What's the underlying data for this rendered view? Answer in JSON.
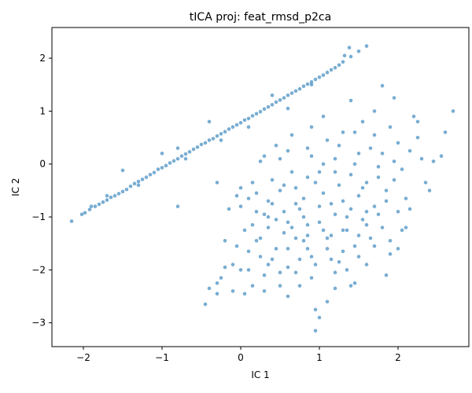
{
  "chart_data": {
    "type": "scatter",
    "title": "tICA proj: feat_rmsd_p2ca",
    "xlabel": "IC 1",
    "ylabel": "IC 2",
    "xlim": [
      -2.4,
      2.9
    ],
    "ylim": [
      -3.45,
      2.58
    ],
    "xticks": [
      -2,
      -1,
      0,
      1,
      2
    ],
    "yticks": [
      -3,
      -2,
      -1,
      0,
      1,
      2
    ],
    "grid": false,
    "color": "#1f77b4",
    "series": [
      {
        "points": [
          [
            -2.15,
            -1.08
          ],
          [
            -2.02,
            -0.95
          ],
          [
            -1.98,
            -0.92
          ],
          [
            -1.92,
            -0.86
          ],
          [
            -1.85,
            -0.8
          ],
          [
            -1.8,
            -0.76
          ],
          [
            -1.75,
            -0.72
          ],
          [
            -1.7,
            -0.68
          ],
          [
            -1.65,
            -0.63
          ],
          [
            -1.6,
            -0.6
          ],
          [
            -1.55,
            -0.56
          ],
          [
            -1.5,
            -0.52
          ],
          [
            -1.45,
            -0.48
          ],
          [
            -1.4,
            -0.42
          ],
          [
            -1.35,
            -0.37
          ],
          [
            -1.3,
            -0.33
          ],
          [
            -1.25,
            -0.29
          ],
          [
            -1.2,
            -0.25
          ],
          [
            -1.15,
            -0.2
          ],
          [
            -1.1,
            -0.16
          ],
          [
            -1.05,
            -0.1
          ],
          [
            -1.0,
            -0.07
          ],
          [
            -0.95,
            -0.03
          ],
          [
            -0.9,
            0.02
          ],
          [
            -0.85,
            0.06
          ],
          [
            -0.8,
            0.1
          ],
          [
            -0.75,
            0.15
          ],
          [
            -0.7,
            0.19
          ],
          [
            -0.65,
            0.23
          ],
          [
            -0.6,
            0.28
          ],
          [
            -0.55,
            0.32
          ],
          [
            -0.5,
            0.37
          ],
          [
            -0.45,
            0.4
          ],
          [
            -0.4,
            0.45
          ],
          [
            -0.35,
            0.48
          ],
          [
            -0.3,
            0.53
          ],
          [
            -0.25,
            0.57
          ],
          [
            -0.2,
            0.61
          ],
          [
            -0.15,
            0.66
          ],
          [
            -0.1,
            0.7
          ],
          [
            -0.05,
            0.74
          ],
          [
            0.0,
            0.78
          ],
          [
            0.05,
            0.83
          ],
          [
            0.1,
            0.86
          ],
          [
            0.15,
            0.91
          ],
          [
            0.2,
            0.95
          ],
          [
            0.25,
            0.99
          ],
          [
            0.3,
            1.04
          ],
          [
            0.35,
            1.08
          ],
          [
            0.4,
            1.12
          ],
          [
            0.45,
            1.17
          ],
          [
            0.5,
            1.21
          ],
          [
            0.55,
            1.25
          ],
          [
            0.6,
            1.3
          ],
          [
            0.65,
            1.34
          ],
          [
            0.7,
            1.38
          ],
          [
            0.75,
            1.42
          ],
          [
            0.8,
            1.47
          ],
          [
            0.85,
            1.51
          ],
          [
            0.9,
            1.55
          ],
          [
            0.95,
            1.6
          ],
          [
            1.0,
            1.64
          ],
          [
            1.05,
            1.68
          ],
          [
            1.1,
            1.73
          ],
          [
            1.15,
            1.78
          ],
          [
            1.2,
            1.82
          ],
          [
            1.25,
            1.87
          ],
          [
            1.3,
            1.93
          ],
          [
            1.4,
            2.03
          ],
          [
            1.5,
            2.13
          ],
          [
            1.6,
            2.23
          ],
          [
            1.38,
            2.2
          ],
          [
            1.32,
            2.05
          ],
          [
            -1.5,
            -0.12
          ],
          [
            -1.0,
            0.2
          ],
          [
            -1.9,
            -0.8
          ],
          [
            -1.3,
            -0.4
          ],
          [
            -0.4,
            0.8
          ],
          [
            -0.7,
            0.1
          ],
          [
            0.1,
            0.7
          ],
          [
            0.6,
            1.05
          ],
          [
            -0.25,
            0.45
          ],
          [
            0.4,
            1.3
          ],
          [
            -1.7,
            -0.6
          ],
          [
            0.9,
            1.5
          ],
          [
            -0.8,
            0.3
          ],
          [
            -0.8,
            -0.8
          ],
          [
            -0.45,
            -2.65
          ],
          [
            -0.4,
            -2.35
          ],
          [
            -0.3,
            -2.25
          ],
          [
            -0.2,
            -1.95
          ],
          [
            -0.1,
            -1.9
          ],
          [
            -0.05,
            -1.55
          ],
          [
            0.0,
            -0.8
          ],
          [
            0.05,
            -2.45
          ],
          [
            0.1,
            -1.65
          ],
          [
            0.15,
            -1.15
          ],
          [
            0.2,
            -0.55
          ],
          [
            0.25,
            -1.4
          ],
          [
            0.3,
            -2.1
          ],
          [
            0.35,
            -0.7
          ],
          [
            0.4,
            -1.8
          ],
          [
            0.45,
            -1.05
          ],
          [
            0.5,
            -2.3
          ],
          [
            0.55,
            -0.4
          ],
          [
            0.6,
            -1.6
          ],
          [
            0.65,
            -1.2
          ],
          [
            0.7,
            -2.05
          ],
          [
            0.75,
            -0.85
          ],
          [
            0.8,
            -1.45
          ],
          [
            0.85,
            -0.25
          ],
          [
            0.9,
            -1.75
          ],
          [
            0.95,
            -2.75
          ],
          [
            1.0,
            -1.1
          ],
          [
            1.05,
            -0.55
          ],
          [
            1.1,
            -2.6
          ],
          [
            1.15,
            -1.35
          ],
          [
            1.2,
            -0.95
          ],
          [
            1.25,
            -1.85
          ],
          [
            1.3,
            -0.7
          ],
          [
            1.35,
            -1.25
          ],
          [
            1.4,
            -0.2
          ],
          [
            1.45,
            -1.55
          ],
          [
            1.5,
            -0.6
          ],
          [
            1.55,
            -1.05
          ],
          [
            1.6,
            -0.35
          ],
          [
            1.65,
            -1.4
          ],
          [
            1.7,
            -0.8
          ],
          [
            1.75,
            -0.05
          ],
          [
            1.8,
            -1.2
          ],
          [
            1.85,
            -0.5
          ],
          [
            1.9,
            -1.7
          ],
          [
            1.95,
            -0.3
          ],
          [
            2.0,
            -0.9
          ],
          [
            2.05,
            -0.1
          ],
          [
            2.1,
            -1.2
          ],
          [
            2.15,
            0.25
          ],
          [
            2.25,
            0.8
          ],
          [
            2.35,
            -0.35
          ],
          [
            2.45,
            0.05
          ],
          [
            2.6,
            0.6
          ],
          [
            2.7,
            1.0
          ],
          [
            1.8,
            1.48
          ],
          [
            1.95,
            1.25
          ],
          [
            1.4,
            1.2
          ],
          [
            1.05,
            0.9
          ],
          [
            0.9,
            0.7
          ],
          [
            0.5,
            0.1
          ],
          [
            0.25,
            0.05
          ],
          [
            -0.3,
            -0.35
          ],
          [
            -0.15,
            -0.85
          ],
          [
            0.0,
            -0.45
          ],
          [
            0.3,
            -0.95
          ],
          [
            0.65,
            -0.15
          ],
          [
            0.8,
            -0.65
          ],
          [
            1.2,
            0.1
          ],
          [
            1.5,
            0.2
          ],
          [
            1.7,
            0.55
          ],
          [
            2.0,
            0.4
          ],
          [
            2.2,
            0.9
          ],
          [
            0.95,
            -3.15
          ],
          [
            1.0,
            -2.9
          ],
          [
            0.6,
            -1.1
          ],
          [
            0.4,
            -0.75
          ],
          [
            0.2,
            -1.45
          ],
          [
            0.1,
            -2.0
          ],
          [
            -0.1,
            -2.4
          ],
          [
            0.7,
            -1.4
          ],
          [
            1.15,
            -1.8
          ],
          [
            1.35,
            -2.0
          ],
          [
            1.7,
            -1.55
          ],
          [
            1.85,
            -2.1
          ],
          [
            0.85,
            -1.15
          ],
          [
            1.05,
            -1.25
          ],
          [
            1.25,
            -0.4
          ],
          [
            1.6,
            -0.9
          ],
          [
            1.75,
            -0.25
          ],
          [
            0.55,
            -0.9
          ],
          [
            0.35,
            -1.2
          ],
          [
            0.15,
            -0.35
          ],
          [
            0.45,
            -1.6
          ],
          [
            0.75,
            -2.3
          ],
          [
            1.3,
            -1.65
          ],
          [
            1.45,
            -2.25
          ],
          [
            0.3,
            0.15
          ],
          [
            0.6,
            0.25
          ],
          [
            0.85,
            0.3
          ],
          [
            1.1,
            0.45
          ],
          [
            1.3,
            0.6
          ],
          [
            1.55,
            0.8
          ],
          [
            1.65,
            0.3
          ],
          [
            0.95,
            -0.35
          ],
          [
            1.15,
            -0.75
          ],
          [
            1.4,
            -0.85
          ],
          [
            0.5,
            -0.5
          ],
          [
            0.2,
            -0.9
          ],
          [
            0.05,
            -1.25
          ],
          [
            -0.2,
            -1.45
          ],
          [
            0.35,
            -1.9
          ],
          [
            0.6,
            -1.95
          ],
          [
            0.85,
            -1.6
          ],
          [
            1.1,
            -1.4
          ],
          [
            1.5,
            -1.35
          ],
          [
            1.9,
            -1.45
          ],
          [
            2.1,
            -0.65
          ],
          [
            1.95,
            0.05
          ],
          [
            1.8,
            0.2
          ],
          [
            1.25,
            0.35
          ],
          [
            0.7,
            -0.45
          ],
          [
            0.4,
            -0.3
          ],
          [
            -0.05,
            -0.6
          ],
          [
            0.25,
            -1.75
          ],
          [
            0.5,
            -2.05
          ],
          [
            0.9,
            -2.15
          ],
          [
            1.2,
            -2.35
          ],
          [
            1.6,
            -1.9
          ],
          [
            2.05,
            -1.25
          ],
          [
            0.15,
            -2.3
          ],
          [
            -0.25,
            -2.15
          ],
          [
            0.8,
            -1.0
          ],
          [
            1.0,
            -0.8
          ],
          [
            1.35,
            -1.0
          ],
          [
            1.55,
            -0.45
          ],
          [
            1.85,
            -0.7
          ],
          [
            0.45,
            0.35
          ],
          [
            0.65,
            0.55
          ],
          [
            0.9,
            0.15
          ],
          [
            1.05,
            0.0
          ],
          [
            1.2,
            -0.15
          ],
          [
            1.45,
            0.0
          ],
          [
            2.3,
            0.1
          ],
          [
            2.4,
            -0.5
          ],
          [
            2.55,
            0.15
          ],
          [
            2.25,
            0.5
          ],
          [
            1.9,
            0.7
          ],
          [
            1.7,
            1.0
          ],
          [
            1.45,
            0.6
          ],
          [
            0.75,
            -1.8
          ],
          [
            0.95,
            -1.9
          ],
          [
            0.6,
            -2.5
          ],
          [
            0.3,
            -2.4
          ],
          [
            0.0,
            -2.0
          ],
          [
            -0.3,
            -2.45
          ],
          [
            0.85,
            -1.35
          ],
          [
            1.1,
            -1.6
          ],
          [
            1.3,
            -1.25
          ],
          [
            1.0,
            -0.15
          ],
          [
            0.7,
            -0.75
          ],
          [
            0.55,
            -1.3
          ],
          [
            0.35,
            -1.0
          ],
          [
            0.1,
            -0.65
          ],
          [
            1.6,
            -1.15
          ],
          [
            1.75,
            -0.95
          ],
          [
            2.0,
            -1.6
          ],
          [
            2.15,
            -0.85
          ],
          [
            1.5,
            -1.75
          ],
          [
            1.4,
            -2.3
          ],
          [
            1.2,
            -2.05
          ]
        ]
      }
    ]
  }
}
